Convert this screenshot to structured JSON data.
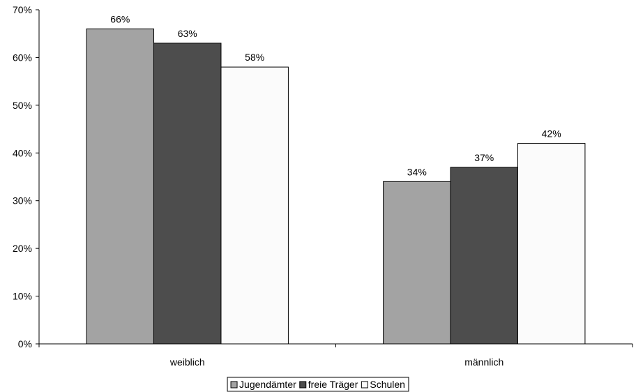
{
  "chart_data": {
    "type": "bar",
    "categories": [
      "weiblich",
      "männlich"
    ],
    "series": [
      {
        "name": "Jugendämter",
        "values": [
          66,
          34
        ],
        "color": "#a3a3a3",
        "labels": [
          "66%",
          "34%"
        ]
      },
      {
        "name": "freie Träger",
        "values": [
          63,
          37
        ],
        "color": "#4d4d4d",
        "labels": [
          "63%",
          "37%"
        ]
      },
      {
        "name": "Schulen",
        "values": [
          58,
          42
        ],
        "color": "#fbfbfb",
        "labels": [
          "58%",
          "42%"
        ]
      }
    ],
    "ylim": [
      0,
      70
    ],
    "yticks": [
      0,
      10,
      20,
      30,
      40,
      50,
      60,
      70
    ],
    "ytick_labels": [
      "0%",
      "10%",
      "20%",
      "30%",
      "40%",
      "50%",
      "60%",
      "70%"
    ],
    "grid": false,
    "legend": "bottom-center"
  }
}
